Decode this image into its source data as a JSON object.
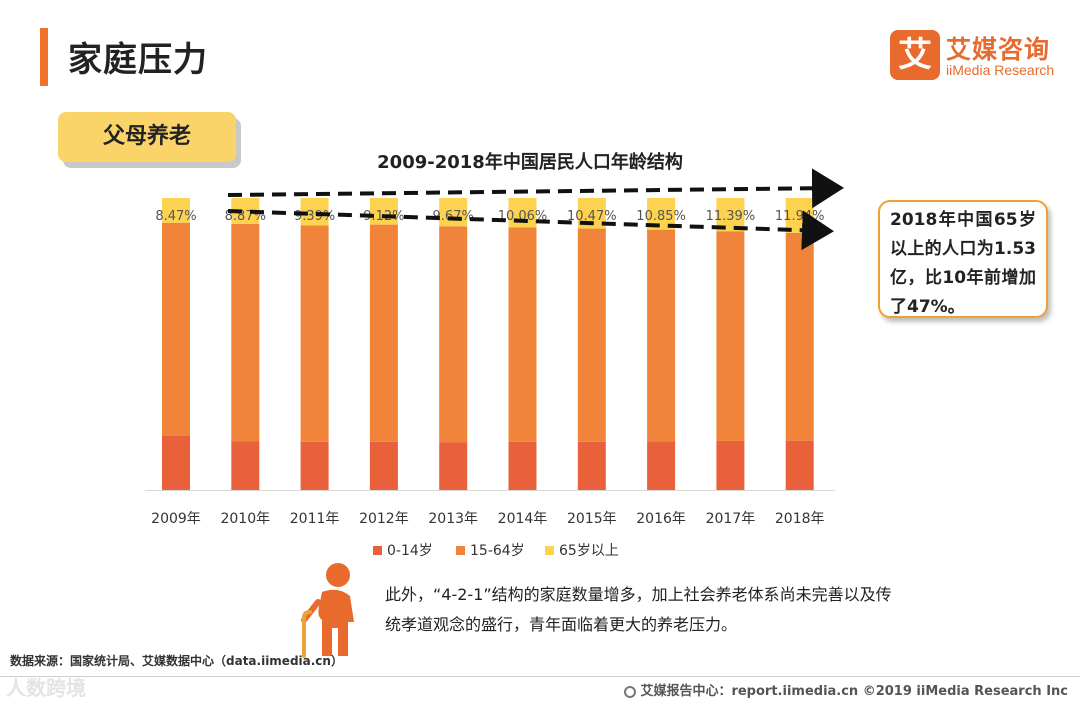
{
  "page": {
    "title": "家庭压力",
    "section_tag": "父母养老",
    "callout": "2018年中国65岁以上的人口为1.53亿，比10年前增加了47%。",
    "description": "此外，“4-2-1”结构的家庭数量增多，加上社会养老体系尚未完善以及传统孝道观念的盛行，青年面临着更大的养老压力。",
    "source": "数据来源：国家统计局、艾媒数据中心（data.iimedia.cn）"
  },
  "logo": {
    "glyph": "艾",
    "name_cn": "艾媒咨询",
    "name_en": "iiMedia Research"
  },
  "footer": {
    "left": "人数跨境",
    "right": "艾媒报告中心：report.iimedia.cn  ©2019  iiMedia Research  Inc"
  },
  "colors": {
    "accent": "#f0712a",
    "age_0_14": "#e8613a",
    "age_15_64": "#f0843a",
    "age_65_plus": "#fcd24e"
  },
  "chart_data": {
    "type": "bar",
    "stacked": true,
    "title": "2009-2018年中国居民人口年龄结构",
    "categories": [
      "2009年",
      "2010年",
      "2011年",
      "2012年",
      "2013年",
      "2014年",
      "2015年",
      "2016年",
      "2017年",
      "2018年"
    ],
    "series": [
      {
        "name": "0-14岁",
        "values": [
          18.5,
          16.6,
          16.5,
          16.5,
          16.4,
          16.5,
          16.5,
          16.7,
          16.8,
          16.9
        ]
      },
      {
        "name": "15-64岁",
        "values": [
          73.03,
          74.53,
          74.11,
          74.38,
          73.93,
          73.44,
          73.03,
          72.45,
          71.81,
          71.16
        ]
      },
      {
        "name": "65岁以上",
        "values": [
          8.47,
          8.87,
          9.39,
          9.12,
          9.67,
          10.06,
          10.47,
          10.85,
          11.39,
          11.94
        ]
      }
    ],
    "data_labels": [
      "8.47%",
      "8.87%",
      "9.39%",
      "9.12%",
      "9.67%",
      "10.06%",
      "10.47%",
      "10.85%",
      "11.39%",
      "11.94%"
    ],
    "ylim": [
      0,
      100
    ],
    "xlabel": "",
    "ylabel": "",
    "legend_position": "bottom",
    "grid": false
  }
}
